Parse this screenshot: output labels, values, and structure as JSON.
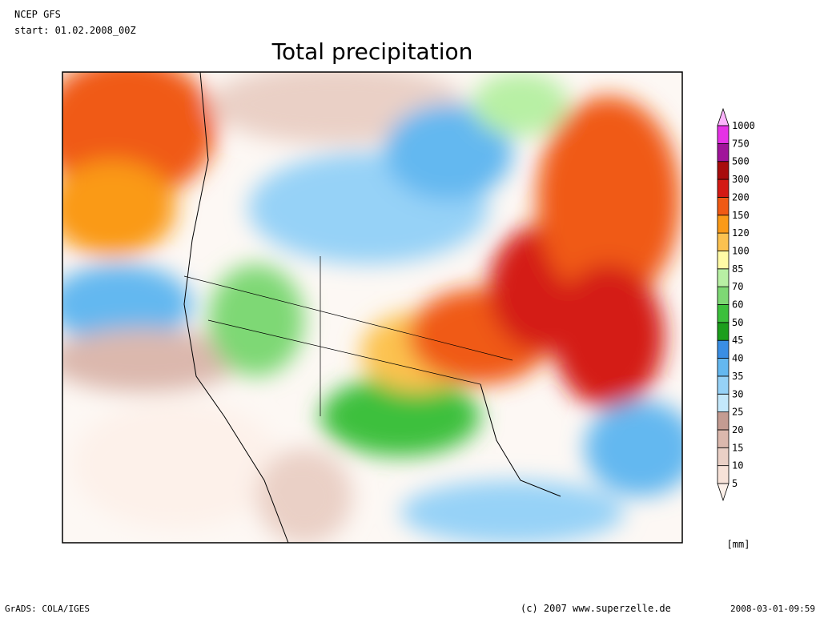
{
  "header": {
    "model": "NCEP GFS",
    "start": "start: 01.02.2008_00Z"
  },
  "title": "Total precipitation",
  "legend": {
    "levels": [
      5,
      10,
      15,
      20,
      25,
      30,
      35,
      40,
      45,
      50,
      60,
      70,
      85,
      100,
      120,
      150,
      200,
      300,
      500,
      750,
      1000
    ],
    "colors": [
      "#fdf1ea",
      "#f7e2d8",
      "#ead0c6",
      "#dbb8ad",
      "#c49c92",
      "#c4e8fb",
      "#96d2f7",
      "#64b8f0",
      "#3a8ee4",
      "#1c9e1c",
      "#3cc03c",
      "#7ed874",
      "#b8f0a4",
      "#fffaa6",
      "#fcc250",
      "#fa9a18",
      "#f05a14",
      "#d41a14",
      "#a80c0c",
      "#a0149a",
      "#e632e6",
      "#fcb4fc"
    ],
    "unit": "[mm]"
  },
  "footer": {
    "left": "GrADS: COLA/IGES",
    "center": "(c) 2007 www.superzelle.de",
    "right": "2008-03-01-09:59"
  }
}
